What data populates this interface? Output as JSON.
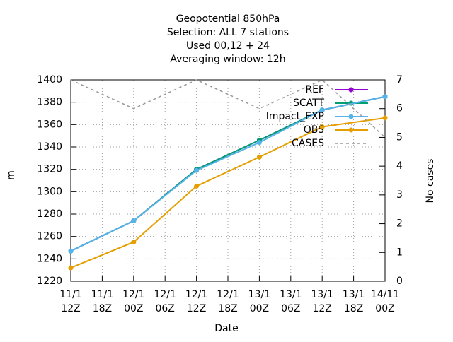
{
  "chart_data": {
    "type": "line",
    "title": [
      "Geopotential 850hPa",
      "Selection: ALL      7 stations",
      "Used  00,12  + 24",
      "Averaging window: 12h"
    ],
    "xlabel": "Date",
    "ylabel": "m",
    "y2label": "No cases",
    "x": [
      0,
      12,
      24,
      36,
      48,
      60
    ],
    "xlim": [
      0,
      60
    ],
    "xticks": [
      {
        "value": 0,
        "label": [
          "11/1",
          "12Z"
        ]
      },
      {
        "value": 6,
        "label": [
          "11/1",
          "18Z"
        ]
      },
      {
        "value": 12,
        "label": [
          "12/1",
          "00Z"
        ]
      },
      {
        "value": 18,
        "label": [
          "12/1",
          "06Z"
        ]
      },
      {
        "value": 24,
        "label": [
          "12/1",
          "12Z"
        ]
      },
      {
        "value": 30,
        "label": [
          "12/1",
          "18Z"
        ]
      },
      {
        "value": 36,
        "label": [
          "13/1",
          "00Z"
        ]
      },
      {
        "value": 42,
        "label": [
          "13/1",
          "06Z"
        ]
      },
      {
        "value": 48,
        "label": [
          "13/1",
          "12Z"
        ]
      },
      {
        "value": 54,
        "label": [
          "13/1",
          "18Z"
        ]
      },
      {
        "value": 60,
        "label": [
          "14/11",
          "00Z"
        ]
      }
    ],
    "ylim": [
      1220,
      1400
    ],
    "yticks": [
      1220,
      1240,
      1260,
      1280,
      1300,
      1320,
      1340,
      1360,
      1380,
      1400
    ],
    "y2lim": [
      0,
      7
    ],
    "y2ticks": [
      0,
      1,
      2,
      3,
      4,
      5,
      6,
      7
    ],
    "grid": true,
    "legend": "top-right",
    "series": [
      {
        "name": "REF",
        "color": "#9400d3",
        "values": [
          1247,
          1274,
          1320,
          1346,
          1373,
          1385
        ]
      },
      {
        "name": "SCATT",
        "color": "#009e73",
        "values": [
          1247,
          1274,
          1320,
          1346,
          1373,
          1385
        ]
      },
      {
        "name": "Impact_EXP",
        "color": "#56b4e9",
        "values": [
          1247,
          1274,
          1319,
          1344,
          1373,
          1385
        ]
      },
      {
        "name": "OBS",
        "color": "#e69f00",
        "values": [
          1232,
          1255,
          1305,
          1331,
          1358,
          1366
        ]
      },
      {
        "name": "CASES",
        "color": "#999999",
        "axis": "y2",
        "dash": true,
        "values": [
          7,
          6,
          7,
          6,
          7,
          5
        ]
      }
    ]
  }
}
